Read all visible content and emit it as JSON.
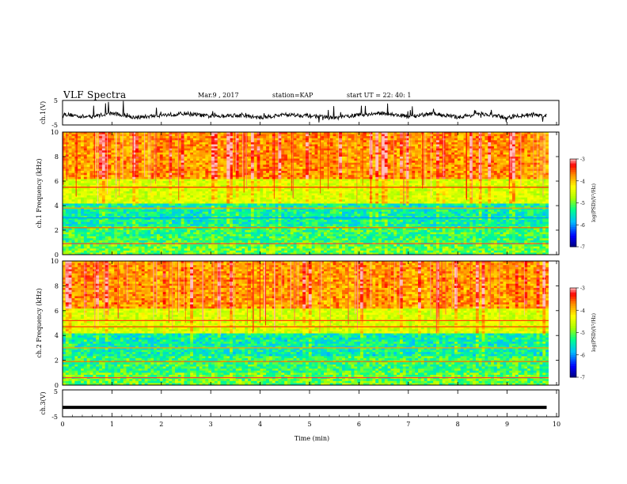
{
  "header": {
    "title": "VLF Spectra",
    "date": "Mar.9 , 2017",
    "station": "station=KAP",
    "start": "start UT = 22: 40: 1"
  },
  "colors": {
    "trace": "#000000",
    "colormap": [
      "#000080",
      "#0000ff",
      "#00c0ff",
      "#00ff80",
      "#c0ff00",
      "#ffff00",
      "#ff8000",
      "#ff0000",
      "#ffc0c0"
    ]
  },
  "chart_data": [
    {
      "type": "line",
      "panel": "ch1-waveform",
      "ylabel": "ch.1(V)",
      "ylim": [
        -5,
        5
      ],
      "yticks": [
        "5",
        "-5"
      ],
      "xlim": [
        0,
        10
      ],
      "x": [
        0,
        0.5,
        1,
        1.5,
        2,
        2.5,
        3,
        3.5,
        4,
        4.5,
        5,
        5.5,
        6,
        6.5,
        7,
        7.5,
        8,
        8.5,
        9,
        9.5,
        9.8
      ],
      "values": [
        -0.5,
        -1.8,
        -0.2,
        -2.0,
        -1.0,
        -0.3,
        -1.5,
        -1.0,
        -2.0,
        -0.8,
        -1.2,
        -2.2,
        -0.9,
        -0.2,
        -1.6,
        -0.4,
        -1.8,
        -0.5,
        -2.0,
        -0.6,
        -1.4
      ],
      "noisy": true
    },
    {
      "type": "heatmap",
      "panel": "ch1-spectrogram",
      "ylabel": "ch.1 Frequency (kHz)",
      "ylim": [
        0,
        10
      ],
      "yticks": [
        "0",
        "2",
        "4",
        "6",
        "8",
        "10"
      ],
      "xlim": [
        0,
        10
      ],
      "colorbar": {
        "label": "log(PSD)(V²/Hz)",
        "range": [
          -7,
          -3
        ],
        "ticks": [
          "-3",
          "-4",
          "-5",
          "-6",
          "-7"
        ]
      },
      "bands": [
        {
          "kHz": 0.9,
          "level": -3.2
        },
        {
          "kHz": 2.2,
          "level": -3.6
        },
        {
          "kHz": 3.0,
          "level": -6.0
        },
        {
          "kHz": 3.8,
          "level": -3.8
        },
        {
          "kHz": 5.5,
          "level": -3.4
        }
      ]
    },
    {
      "type": "heatmap",
      "panel": "ch2-spectrogram",
      "ylabel": "ch.2 Frequency (kHz)",
      "ylim": [
        0,
        10
      ],
      "yticks": [
        "0",
        "2",
        "4",
        "6",
        "8",
        "10"
      ],
      "xlim": [
        0,
        10
      ],
      "colorbar": {
        "label": "log(PSD)(V²/Hz)",
        "range": [
          -7,
          -3
        ],
        "ticks": [
          "-3",
          "-4",
          "-5",
          "-6",
          "-7"
        ]
      },
      "bands": [
        {
          "kHz": 0.6,
          "level": -3.2
        },
        {
          "kHz": 1.9,
          "level": -3.6
        },
        {
          "kHz": 3.0,
          "level": -3.8
        },
        {
          "kHz": 4.7,
          "level": -3.4
        },
        {
          "kHz": 5.2,
          "level": -3.5
        }
      ]
    },
    {
      "type": "line",
      "panel": "ch3-waveform",
      "ylabel": "ch.3(V)",
      "ylim": [
        -5,
        5
      ],
      "yticks": [
        "5",
        "-5"
      ],
      "xlim": [
        0,
        10
      ],
      "x": [
        0,
        9.8
      ],
      "values": [
        -1.5,
        -1.5
      ],
      "xlabel": "Time (min)",
      "xticks": [
        "0",
        "1",
        "2",
        "3",
        "4",
        "5",
        "6",
        "7",
        "8",
        "9",
        "10"
      ]
    }
  ]
}
